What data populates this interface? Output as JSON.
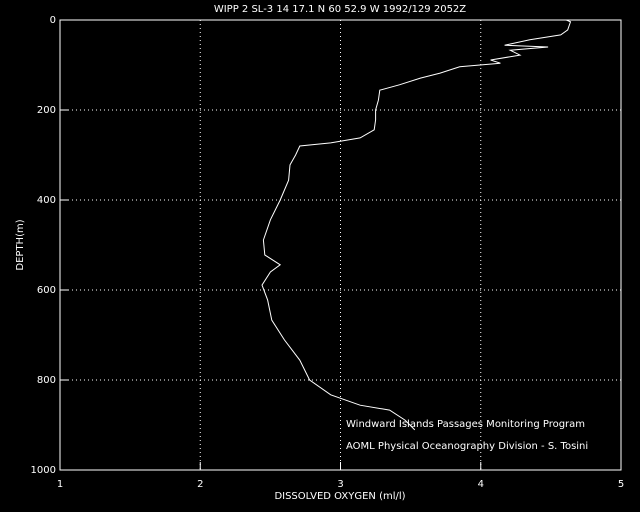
{
  "chart_data": {
    "type": "line",
    "title": "WIPP 2 SL-3  14 17.1 N  60 52.9 W  1992/129 2052Z",
    "x_label": "DISSOLVED OXYGEN (ml/l)",
    "y_label": "DEPTH(m)",
    "annotations": [
      "Windward Islands Passages Monitoring Program",
      "AOML Physical Oceanography Division - S. Tosini"
    ],
    "x": [
      4.61,
      4.64,
      4.62,
      4.57,
      4.35,
      4.17,
      4.48,
      4.21,
      4.28,
      4.07,
      4.14,
      3.85,
      3.71,
      3.57,
      3.42,
      3.28,
      3.27,
      3.25,
      3.25,
      3.24,
      3.14,
      2.93,
      2.71,
      2.68,
      2.64,
      2.63,
      2.57,
      2.5,
      2.45,
      2.46,
      2.57,
      2.5,
      2.44,
      2.48,
      2.51,
      2.6,
      2.71,
      2.78,
      2.93,
      3.14,
      3.35,
      3.46,
      3.53
    ],
    "values": [
      0,
      4,
      22,
      33,
      44,
      56,
      60,
      67,
      78,
      89,
      96,
      104,
      118,
      129,
      144,
      156,
      178,
      200,
      222,
      244,
      262,
      273,
      280,
      300,
      322,
      356,
      400,
      444,
      489,
      522,
      544,
      560,
      589,
      622,
      667,
      711,
      756,
      800,
      833,
      856,
      867,
      889,
      911
    ],
    "color": "#ffffff",
    "xlim": [
      1,
      5
    ],
    "xticks": [
      1,
      2,
      3,
      4,
      5
    ],
    "ylim": [
      0,
      1000
    ],
    "yticks": [
      0,
      200,
      400,
      600,
      800,
      1000
    ],
    "y_inverted": true,
    "grid": true
  }
}
